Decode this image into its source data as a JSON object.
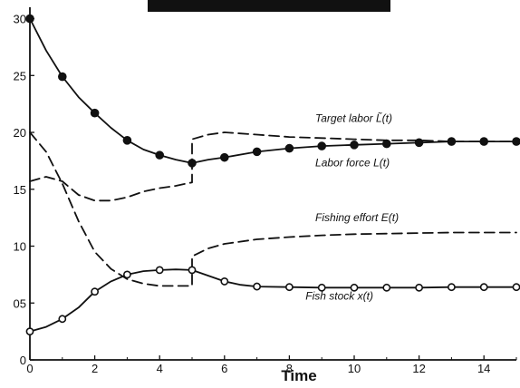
{
  "chart_data": {
    "type": "line",
    "title": "",
    "xlabel": "Time",
    "ylabel": "",
    "xlim": [
      0,
      15
    ],
    "ylim": [
      0,
      31
    ],
    "xticks": [
      0,
      2,
      4,
      6,
      8,
      10,
      12,
      14
    ],
    "xtick_labels": [
      "0",
      "2",
      "4",
      "6",
      "8",
      "10",
      "12",
      "14"
    ],
    "yticks": [
      0,
      5,
      10,
      15,
      20,
      25,
      30
    ],
    "ytick_labels": [
      "0",
      "05",
      "10",
      "15",
      "20",
      "25",
      "30"
    ],
    "grid": false,
    "legend": "none (inline labels)",
    "colors": {
      "line": "#111111",
      "marker_fill": "#111111",
      "open_fill": "#ffffff"
    },
    "series": [
      {
        "name": "Labor force L(t)",
        "style": "solid",
        "marker": "filled-circle",
        "x": [
          0,
          0.5,
          1,
          1.5,
          2,
          2.5,
          3,
          3.5,
          4,
          4.5,
          5,
          5.5,
          6,
          7,
          8,
          9,
          10,
          11,
          12,
          13,
          14,
          15
        ],
        "y": [
          30,
          27.2,
          24.9,
          23.1,
          21.7,
          20.4,
          19.3,
          18.5,
          18.0,
          17.6,
          17.3,
          17.6,
          17.8,
          18.3,
          18.6,
          18.8,
          18.9,
          19.0,
          19.1,
          19.2,
          19.2,
          19.2
        ],
        "marker_x": [
          0,
          1,
          2,
          3,
          4,
          5,
          6,
          7,
          8,
          9,
          10,
          11,
          12,
          13,
          14,
          15
        ],
        "marker_y": [
          30,
          24.9,
          21.7,
          19.3,
          18.0,
          17.3,
          17.8,
          18.3,
          18.6,
          18.8,
          18.9,
          19.0,
          19.1,
          19.2,
          19.2,
          19.2
        ]
      },
      {
        "name": "Target labor L̃(t)",
        "style": "dashed",
        "x": [
          0,
          0.5,
          1,
          1.5,
          2,
          2.5,
          3,
          3.5,
          4,
          4.5,
          5,
          5.001,
          5.5,
          6,
          7,
          8,
          9,
          10,
          11,
          12,
          13,
          14,
          15
        ],
        "y": [
          15.7,
          16.1,
          15.7,
          14.5,
          14.0,
          14.0,
          14.3,
          14.8,
          15.1,
          15.3,
          15.6,
          19.4,
          19.8,
          20.0,
          19.8,
          19.6,
          19.5,
          19.4,
          19.3,
          19.3,
          19.2,
          19.2,
          19.2
        ]
      },
      {
        "name": "Fishing effort E(t)",
        "style": "dashed",
        "x": [
          0,
          0.5,
          1,
          1.5,
          2,
          2.5,
          3,
          3.5,
          4,
          4.5,
          5,
          5.001,
          5.5,
          6,
          7,
          8,
          9,
          10,
          11,
          12,
          13,
          14,
          15
        ],
        "y": [
          20,
          18.3,
          15.5,
          12.2,
          9.5,
          8.0,
          7.1,
          6.7,
          6.5,
          6.5,
          6.5,
          9.1,
          9.8,
          10.2,
          10.6,
          10.8,
          10.95,
          11.05,
          11.1,
          11.15,
          11.2,
          11.2,
          11.2
        ]
      },
      {
        "name": "Fish stock x(t)",
        "style": "solid",
        "marker": "open-circle",
        "x": [
          0,
          0.5,
          1,
          1.5,
          2,
          2.5,
          3,
          3.5,
          4,
          4.5,
          5,
          5.5,
          6,
          6.5,
          7,
          8,
          9,
          10,
          11,
          12,
          13,
          14,
          15
        ],
        "y": [
          2.5,
          2.9,
          3.6,
          4.6,
          6.0,
          6.9,
          7.5,
          7.8,
          7.9,
          7.95,
          7.9,
          7.4,
          6.9,
          6.6,
          6.45,
          6.4,
          6.35,
          6.35,
          6.35,
          6.35,
          6.4,
          6.4,
          6.4
        ],
        "marker_x": [
          0,
          1,
          2,
          3,
          4,
          5,
          6,
          7,
          8,
          9,
          10,
          11,
          12,
          13,
          14,
          15
        ],
        "marker_y": [
          2.5,
          3.6,
          6.0,
          7.5,
          7.9,
          7.9,
          6.9,
          6.45,
          6.4,
          6.35,
          6.35,
          6.35,
          6.35,
          6.4,
          6.4,
          6.4
        ]
      }
    ],
    "annotations": [
      {
        "text": "Target labor L̃(t)",
        "x": 8.8,
        "y": 20.9,
        "series": "Target labor L̃(t)"
      },
      {
        "text": "Labor force L(t)",
        "x": 8.8,
        "y": 17.0,
        "series": "Labor force L(t)"
      },
      {
        "text": "Fishing effort E(t)",
        "x": 8.8,
        "y": 12.2,
        "series": "Fishing effort E(t)"
      },
      {
        "text": "Fish stock x(t)",
        "x": 8.5,
        "y": 5.3,
        "series": "Fish stock x(t)"
      }
    ],
    "occlusion": {
      "description": "black redaction bar at top center",
      "color": "#111111"
    }
  }
}
